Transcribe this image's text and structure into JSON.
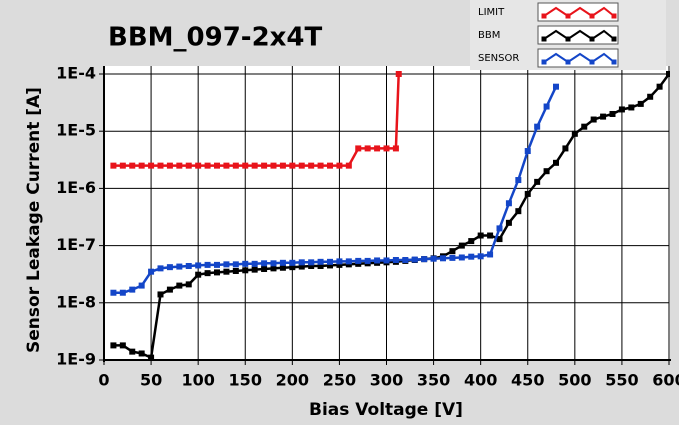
{
  "chart_data": {
    "type": "line",
    "title": "BBM_097-2x4T",
    "x_label": "Bias Voltage [V]",
    "y_label": "Sensor Leakage Current [A]",
    "y_log": true,
    "grid": true,
    "legend": "top-right",
    "xlim": [
      0,
      600
    ],
    "xticks": [
      0,
      50,
      100,
      150,
      200,
      250,
      300,
      350,
      400,
      450,
      500,
      550,
      600
    ],
    "ylim": [
      1e-09,
      0.0001
    ],
    "yticks": [
      {
        "value": 1e-09,
        "label": "1E-9"
      },
      {
        "value": 1e-08,
        "label": "1E-8"
      },
      {
        "value": 1e-07,
        "label": "1E-7"
      },
      {
        "value": 1e-06,
        "label": "1E-6"
      },
      {
        "value": 1e-05,
        "label": "1E-5"
      },
      {
        "value": 0.0001,
        "label": "1E-4"
      }
    ],
    "series": [
      {
        "name": "LIMIT",
        "color": "#e8141b",
        "x": [
          10,
          20,
          30,
          40,
          50,
          60,
          70,
          80,
          90,
          100,
          110,
          120,
          130,
          140,
          150,
          160,
          170,
          180,
          190,
          200,
          210,
          220,
          230,
          240,
          250,
          260,
          270,
          280,
          290,
          300,
          310,
          313
        ],
        "values": [
          2.5e-06,
          2.5e-06,
          2.5e-06,
          2.5e-06,
          2.5e-06,
          2.5e-06,
          2.5e-06,
          2.5e-06,
          2.5e-06,
          2.5e-06,
          2.5e-06,
          2.5e-06,
          2.5e-06,
          2.5e-06,
          2.5e-06,
          2.5e-06,
          2.5e-06,
          2.5e-06,
          2.5e-06,
          2.5e-06,
          2.5e-06,
          2.5e-06,
          2.5e-06,
          2.5e-06,
          2.5e-06,
          2.5e-06,
          5e-06,
          5e-06,
          5e-06,
          5e-06,
          5e-06,
          0.0001
        ]
      },
      {
        "name": "BBM",
        "color": "#000000",
        "x": [
          10,
          20,
          30,
          40,
          50,
          60,
          70,
          80,
          90,
          100,
          110,
          120,
          130,
          140,
          150,
          160,
          170,
          180,
          190,
          200,
          210,
          220,
          230,
          240,
          250,
          260,
          270,
          280,
          290,
          300,
          310,
          320,
          330,
          340,
          350,
          360,
          370,
          380,
          390,
          400,
          410,
          420,
          430,
          440,
          450,
          460,
          470,
          480,
          490,
          500,
          510,
          520,
          530,
          540,
          550,
          560,
          570,
          580,
          590,
          600
        ],
        "values": [
          1.8e-09,
          1.8e-09,
          1.4e-09,
          1.3e-09,
          1.1e-09,
          1.4e-08,
          1.7e-08,
          2e-08,
          2.1e-08,
          3.1e-08,
          3.3e-08,
          3.4e-08,
          3.5e-08,
          3.6e-08,
          3.7e-08,
          3.8e-08,
          3.9e-08,
          4e-08,
          4.1e-08,
          4.2e-08,
          4.3e-08,
          4.4e-08,
          4.4e-08,
          4.5e-08,
          4.6e-08,
          4.7e-08,
          4.8e-08,
          4.9e-08,
          5e-08,
          5.1e-08,
          5.2e-08,
          5.4e-08,
          5.6e-08,
          5.8e-08,
          6e-08,
          6.5e-08,
          8e-08,
          1e-07,
          1.2e-07,
          1.5e-07,
          1.5e-07,
          1.3e-07,
          2.5e-07,
          4e-07,
          8e-07,
          1.3e-06,
          2e-06,
          2.8e-06,
          5e-06,
          9e-06,
          1.2e-05,
          1.6e-05,
          1.8e-05,
          2e-05,
          2.4e-05,
          2.6e-05,
          3e-05,
          4e-05,
          6e-05,
          0.0001
        ]
      },
      {
        "name": "SENSOR",
        "color": "#1446c8",
        "x": [
          10,
          20,
          30,
          40,
          50,
          60,
          70,
          80,
          90,
          100,
          110,
          120,
          130,
          140,
          150,
          160,
          170,
          180,
          190,
          200,
          210,
          220,
          230,
          240,
          250,
          260,
          270,
          280,
          290,
          300,
          310,
          320,
          330,
          340,
          350,
          360,
          370,
          380,
          390,
          400,
          410,
          420,
          430,
          440,
          450,
          460,
          470,
          480
        ],
        "values": [
          1.5e-08,
          1.5e-08,
          1.7e-08,
          2e-08,
          3.5e-08,
          4e-08,
          4.2e-08,
          4.3e-08,
          4.4e-08,
          4.5e-08,
          4.6e-08,
          4.6e-08,
          4.7e-08,
          4.7e-08,
          4.8e-08,
          4.8e-08,
          4.9e-08,
          4.9e-08,
          5e-08,
          5e-08,
          5.1e-08,
          5.1e-08,
          5.2e-08,
          5.2e-08,
          5.3e-08,
          5.3e-08,
          5.4e-08,
          5.4e-08,
          5.5e-08,
          5.5e-08,
          5.6e-08,
          5.6e-08,
          5.7e-08,
          5.8e-08,
          5.9e-08,
          6e-08,
          6.1e-08,
          6.2e-08,
          6.4e-08,
          6.5e-08,
          7e-08,
          2e-07,
          5.5e-07,
          1.4e-06,
          4.5e-06,
          1.2e-05,
          2.7e-05,
          6e-05
        ]
      }
    ]
  }
}
